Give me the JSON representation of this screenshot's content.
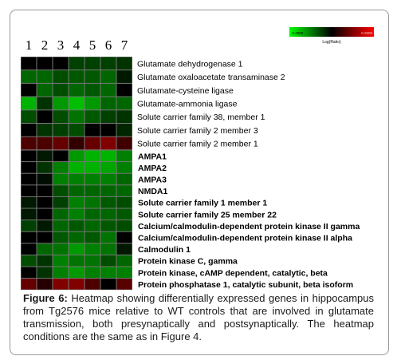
{
  "chart_data": [
    {
      "type": "heatmap",
      "columns": [
        "1",
        "2",
        "3",
        "4",
        "5",
        "6",
        "7"
      ],
      "colorbar": {
        "label": "Log(Ratio)",
        "min_label": "-0.2000",
        "max_label": "0.2000",
        "min": -0.2,
        "max": 0.2,
        "low_color": "#00ff00",
        "mid_color": "#000000",
        "high_color": "#ff0000"
      },
      "rows": [
        "Glutamate dehydrogenase 1",
        "Glutamate oxaloacetate transaminase 2",
        "Glutamate-cysteine ligase",
        "Glutamate-ammonia ligase",
        "Solute carrier family 38, member 1",
        "Solute carrier family 2 member 3",
        "Solute carrier family 2 member 1"
      ],
      "values": [
        [
          0.0,
          0.0,
          0.0,
          -0.05,
          -0.05,
          -0.05,
          -0.04
        ],
        [
          -0.08,
          -0.08,
          -0.06,
          -0.07,
          -0.07,
          -0.08,
          -0.02
        ],
        [
          0.0,
          -0.08,
          -0.06,
          -0.08,
          -0.07,
          -0.08,
          0.0
        ],
        [
          -0.14,
          -0.04,
          -0.12,
          -0.15,
          -0.12,
          -0.08,
          -0.08
        ],
        [
          -0.06,
          0.0,
          -0.06,
          -0.09,
          -0.07,
          -0.05,
          -0.04
        ],
        [
          0.0,
          -0.04,
          -0.05,
          -0.06,
          0.0,
          0.0,
          -0.03
        ],
        [
          0.06,
          0.06,
          0.08,
          0.04,
          0.08,
          0.1,
          0.05
        ]
      ]
    },
    {
      "type": "heatmap",
      "columns": [
        "1",
        "2",
        "3",
        "4",
        "5",
        "6",
        "7"
      ],
      "rows": [
        "AMPA1",
        "AMPA2",
        "AMPA3",
        "NMDA1",
        "Solute carrier family 1 member 1",
        "Solute carrier family 25 member 22",
        "Calcium/calmodulin-dependent protein kinase II gamma",
        "Calcium/calmodulin-dependent protein kinase II alpha",
        "Calmodulin 1",
        "Protein kinase C, gamma",
        "Protein kinase, cAMP dependent, catalytic, beta",
        "Protein phosphatase 1, catalytic subunit, beta isoform"
      ],
      "values": [
        [
          0.0,
          -0.02,
          0.0,
          -0.12,
          -0.14,
          -0.14,
          -0.1
        ],
        [
          0.0,
          -0.04,
          -0.1,
          -0.14,
          -0.14,
          -0.13,
          -0.1
        ],
        [
          0.0,
          -0.01,
          -0.1,
          -0.1,
          -0.1,
          -0.1,
          -0.08
        ],
        [
          0.0,
          0.0,
          -0.06,
          -0.08,
          -0.08,
          -0.08,
          -0.08
        ],
        [
          -0.02,
          0.0,
          -0.05,
          -0.1,
          -0.09,
          -0.07,
          -0.06
        ],
        [
          -0.02,
          0.0,
          -0.08,
          -0.1,
          -0.08,
          -0.08,
          -0.07
        ],
        [
          -0.05,
          -0.02,
          -0.08,
          -0.07,
          -0.08,
          -0.07,
          -0.06
        ],
        [
          0.0,
          0.0,
          -0.07,
          -0.08,
          -0.07,
          -0.09,
          0.0
        ],
        [
          0.0,
          -0.08,
          -0.09,
          -0.12,
          -0.1,
          -0.09,
          -0.02
        ],
        [
          -0.06,
          -0.04,
          -0.1,
          -0.09,
          -0.09,
          -0.06,
          -0.08
        ],
        [
          0.0,
          -0.04,
          -0.1,
          -0.12,
          -0.1,
          -0.1,
          -0.1
        ],
        [
          0.08,
          0.03,
          0.1,
          0.1,
          0.06,
          0.0,
          0.07
        ]
      ]
    }
  ],
  "caption": {
    "label": "Figure 6:",
    "text": " Heatmap showing differentially expressed genes in hippocampus from Tg2576 mice relative to WT controls that are involved in glutamate transmission, both presynaptically and postsynaptically. The heatmap conditions are the same as in Figure 4."
  }
}
